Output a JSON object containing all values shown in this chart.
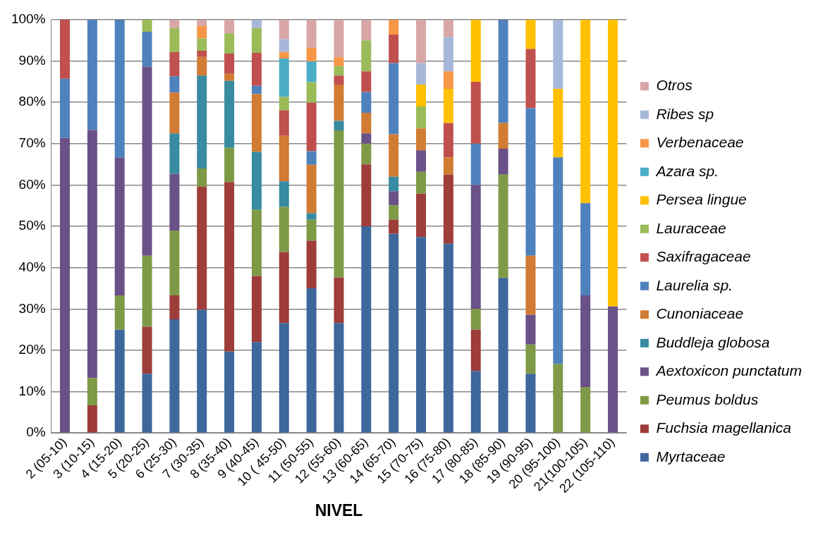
{
  "chart_data": {
    "type": "bar",
    "stacked": true,
    "xlabel": "NIVEL",
    "categories": [
      "2 (05-10)",
      "3 (10-15)",
      "4 (15-20)",
      "5 (20-25)",
      "6 (25-30)",
      "7 (30-35)",
      "8 (35-40)",
      "9 (40-45)",
      "10 ( 45-50)",
      "11 (50-55)",
      "12 (55-60)",
      "13 (60-65)",
      "14 (65-70)",
      "15 (70-75)",
      "16 (75-80)",
      "17 (80-85)",
      "18 (85-90)",
      "19 (90-95)",
      "20 (95-100)",
      "21(100-105)",
      "22 (105-110)"
    ],
    "ylim": [
      0,
      100
    ],
    "yticks": [
      {
        "value": 0,
        "label": "0%"
      },
      {
        "value": 10,
        "label": "10%"
      },
      {
        "value": 20,
        "label": "20%"
      },
      {
        "value": 30,
        "label": "30%"
      },
      {
        "value": 40,
        "label": "40%"
      },
      {
        "value": 50,
        "label": "50%"
      },
      {
        "value": 60,
        "label": "60%"
      },
      {
        "value": 70,
        "label": "70%"
      },
      {
        "value": 80,
        "label": "80%"
      },
      {
        "value": 90,
        "label": "90%"
      },
      {
        "value": 100,
        "label": "100%"
      }
    ],
    "grid": "y",
    "legend": "right",
    "series": [
      {
        "name": "Myrtaceae",
        "color": "#3e679c",
        "values": [
          null,
          null,
          25,
          14.3,
          27.5,
          29.8,
          19.7,
          22,
          26.6,
          35.0,
          26.6,
          50,
          48.2,
          47.4,
          45.8,
          15,
          37.5,
          14.3,
          null,
          null,
          null
        ]
      },
      {
        "name": "Fuchsia magellanica",
        "color": "#9e3d3a",
        "values": [
          null,
          6.7,
          null,
          11.4,
          5.8,
          29.8,
          41.0,
          16,
          17.2,
          11.5,
          11.0,
          15,
          3.4,
          10.5,
          16.7,
          10,
          null,
          null,
          null,
          null,
          null
        ]
      },
      {
        "name": "Peumus boldus",
        "color": "#7e9a46",
        "values": [
          null,
          6.6,
          8.3,
          17.2,
          15.7,
          4.4,
          8.3,
          16,
          10.9,
          5.1,
          35.6,
          5,
          3.5,
          5.3,
          null,
          5,
          25,
          7.1,
          16.7,
          11.1,
          null
        ]
      },
      {
        "name": "Aextoxicon punctatum",
        "color": "#6a5187",
        "values": [
          71.4,
          60,
          33.3,
          45.7,
          13.7,
          null,
          null,
          null,
          null,
          null,
          null,
          2.5,
          3.4,
          5.2,
          null,
          30,
          6.3,
          7.2,
          null,
          22.2,
          30.6
        ]
      },
      {
        "name": "Buddleja globosa",
        "color": "#388ba0",
        "values": [
          null,
          null,
          null,
          null,
          9.8,
          22.5,
          16.2,
          14,
          6.2,
          1.6,
          2.3,
          null,
          3.5,
          null,
          null,
          null,
          null,
          null,
          null,
          null,
          null
        ]
      },
      {
        "name": "Cunoniaceae",
        "color": "#d17b33",
        "values": [
          null,
          null,
          null,
          null,
          9.9,
          4.5,
          1.7,
          14,
          11.0,
          11.7,
          8.8,
          5,
          10.3,
          5.3,
          4.2,
          null,
          6.2,
          14.3,
          null,
          null,
          null
        ]
      },
      {
        "name": "Laurelia sp.",
        "color": "#4f81bd",
        "values": [
          14.3,
          26.7,
          33.4,
          8.5,
          3.9,
          null,
          null,
          2,
          null,
          3.3,
          null,
          5,
          17.2,
          null,
          null,
          10,
          25,
          35.7,
          50,
          22.3,
          null
        ]
      },
      {
        "name": "Saxifragaceae",
        "color": "#c0504d",
        "values": [
          14.3,
          null,
          null,
          null,
          5.9,
          1.5,
          4.9,
          8,
          6.2,
          11.7,
          2.2,
          5,
          6.9,
          null,
          8.3,
          15,
          null,
          14.3,
          null,
          null,
          null
        ]
      },
      {
        "name": "Lauraceae",
        "color": "#9bbb59",
        "values": [
          null,
          null,
          null,
          2.9,
          5.8,
          3.0,
          4.9,
          6,
          3.2,
          5.0,
          2.3,
          7.5,
          null,
          5.3,
          null,
          null,
          null,
          null,
          null,
          null,
          null
        ]
      },
      {
        "name": "Persea lingue",
        "color": "#ffc000",
        "values": [
          null,
          null,
          null,
          null,
          null,
          null,
          null,
          null,
          null,
          null,
          null,
          null,
          null,
          5.3,
          8.3,
          15,
          null,
          7.1,
          16.6,
          44.4,
          69.4
        ]
      },
      {
        "name": "Azara sp.",
        "color": "#4bacc6",
        "values": [
          null,
          null,
          null,
          null,
          null,
          null,
          null,
          null,
          9.3,
          5.0,
          null,
          null,
          null,
          null,
          null,
          null,
          null,
          null,
          null,
          null,
          null
        ]
      },
      {
        "name": "Verbenaceae",
        "color": "#f79646",
        "values": [
          null,
          null,
          null,
          null,
          null,
          3.0,
          null,
          null,
          1.6,
          3.3,
          2.1,
          null,
          3.6,
          null,
          4.2,
          null,
          null,
          null,
          null,
          null,
          null
        ]
      },
      {
        "name": "Ribes sp",
        "color": "#a7b7d9",
        "values": [
          null,
          null,
          null,
          null,
          null,
          null,
          null,
          2,
          3.1,
          null,
          null,
          null,
          null,
          5.2,
          8.3,
          null,
          null,
          null,
          16.7,
          null,
          null
        ]
      },
      {
        "name": "Otros",
        "color": "#d8a6a6",
        "values": [
          null,
          null,
          null,
          null,
          2.0,
          1.5,
          3.3,
          null,
          4.7,
          6.8,
          9.1,
          5,
          null,
          10.5,
          4.2,
          null,
          null,
          null,
          null,
          null,
          null
        ]
      }
    ]
  }
}
